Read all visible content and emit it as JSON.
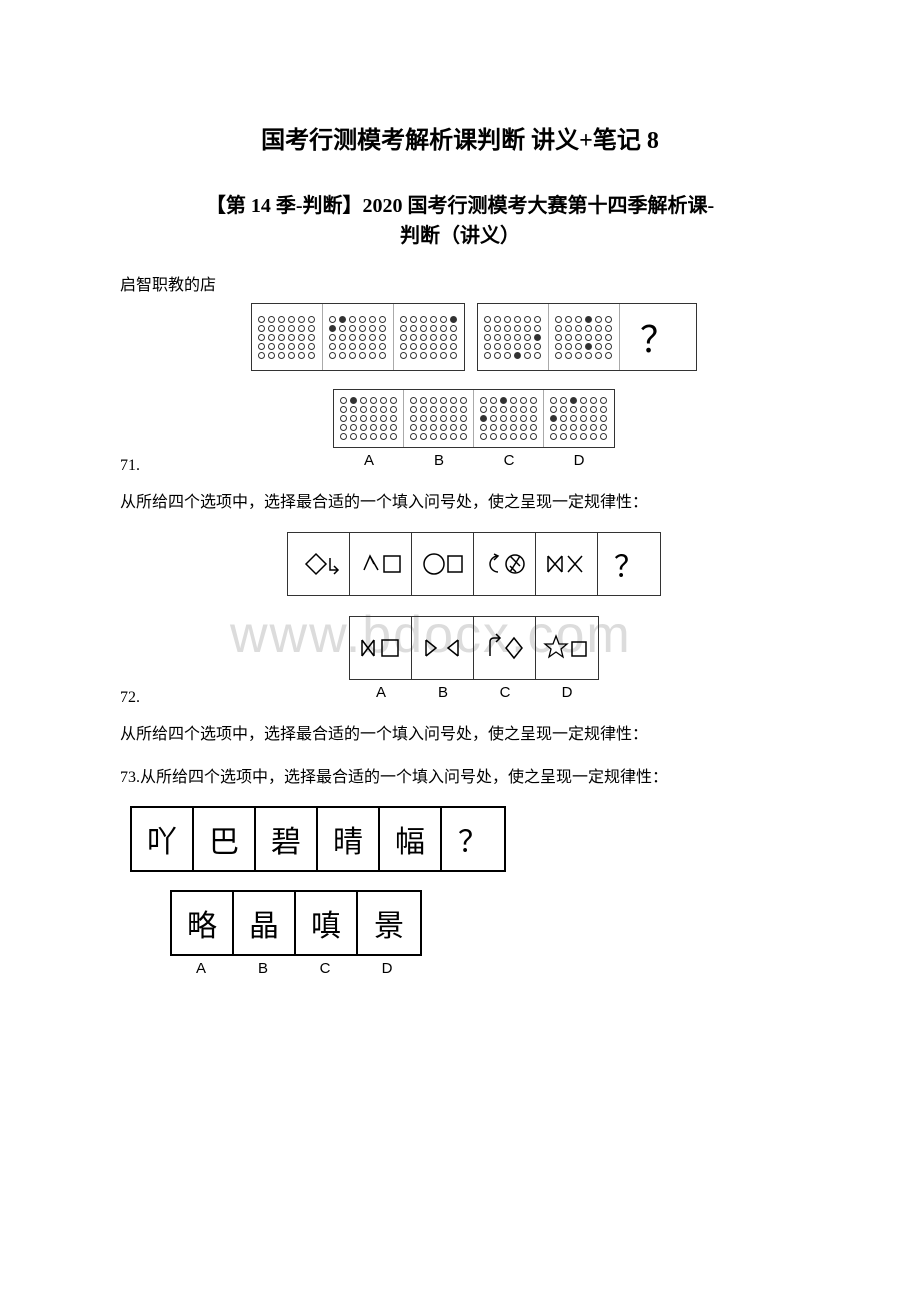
{
  "title": "国考行测模考解析课判断 讲义+笔记 8",
  "subtitle_line1": "【第 14 季-判断】2020 国考行测模考大赛第十四季解析课-",
  "subtitle_line2": "判断（讲义）",
  "shop_note": "启智职教的店",
  "watermark": "www.bdocx.com",
  "q71": {
    "num": "71.",
    "instruction": "从所给四个选项中，选择最合适的一个填入问号处，使之呈现一定规律性：",
    "qmark": "？",
    "labels": [
      "A",
      "B",
      "C",
      "D"
    ],
    "group1": [
      "o.oooo.ooooo.oooooo.ooooooo.fooo",
      "ofoooo.fo.ooo.oooooo.oooooo.oooooo",
      "ooooof.ooooo.ooo.oo.oooooo.oooooo"
    ],
    "group2": [
      "oooooo.oooooo.ooooof.oooooo.ooofoo",
      "ooofoo.oooooo.o.ooof.oooooo.oooooo"
    ],
    "options": [
      "ofoooo.oooooo.oooooo.oo.ooo.oooooo",
      "oooooo.oooooo.ooo.oo.oooooo.oooooo",
      "oofooo.oooooo.foo.oo.oooooo.oooooo",
      "oofooo.oooooo.fooooo.oo.ooo.oooooo"
    ]
  },
  "q72": {
    "num": "72.",
    "instruction": "从所给四个选项中，选择最合适的一个填入问号处，使之呈现一定规律性：",
    "qmark": "？",
    "labels": [
      "A",
      "B",
      "C",
      "D"
    ]
  },
  "q73": {
    "num_text": "73.从所给四个选项中，选择最合适的一个填入问号处，使之呈现一定规律性：",
    "chars": [
      "吖",
      "巴",
      "碧",
      "晴",
      "幅",
      "？"
    ],
    "options": [
      "略",
      "晶",
      "嗔",
      "景"
    ],
    "labels": [
      "A",
      "B",
      "C",
      "D"
    ]
  }
}
